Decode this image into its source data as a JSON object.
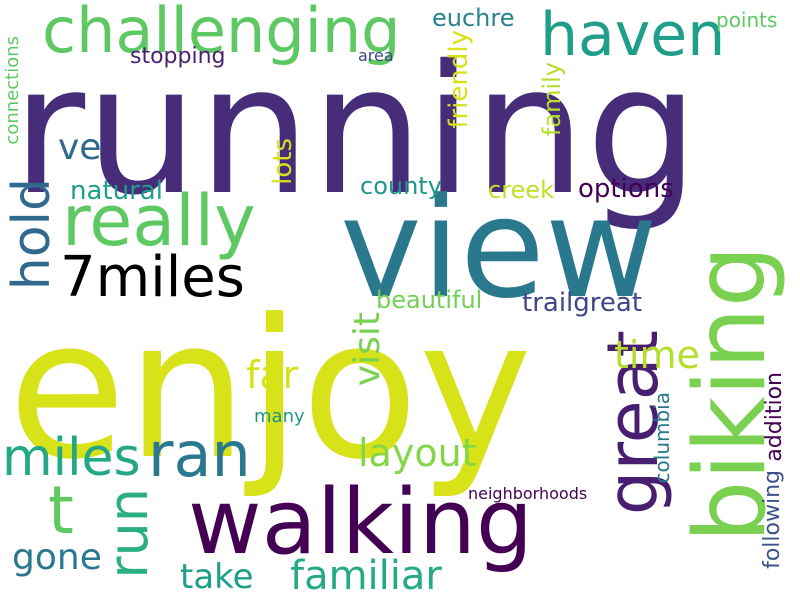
{
  "words": {
    "running": {
      "text": "running",
      "color": "#472c7a"
    },
    "view": {
      "text": "view",
      "color": "#2a788e"
    },
    "enjoy": {
      "text": "enjoy",
      "color": "#d8e219"
    },
    "walking": {
      "text": "walking",
      "color": "#440154"
    },
    "biking": {
      "text": "biking",
      "color": "#7ad151"
    },
    "challenging": {
      "text": "challenging",
      "color": "#5ec962"
    },
    "haven": {
      "text": "haven",
      "color": "#1f9e89"
    },
    "really": {
      "text": "really",
      "color": "#5ec962"
    },
    "miles7": {
      "text": "7miles",
      "color": "#3b528b"
    },
    "hold": {
      "text": "hold",
      "color": "#31688e"
    },
    "great_big": {
      "text": "great",
      "color": "#481f70"
    },
    "miles": {
      "text": "miles",
      "color": "#22a884"
    },
    "ran": {
      "text": "ran",
      "color": "#2a788e"
    },
    "t": {
      "text": "t",
      "color": "#5ec962"
    },
    "run": {
      "text": "run",
      "color": "#2ab07f"
    },
    "gone": {
      "text": "gone",
      "color": "#2a788e"
    },
    "take": {
      "text": "take",
      "color": "#1f9e89"
    },
    "familiar": {
      "text": "familiar",
      "color": "#25ab82"
    },
    "layout": {
      "text": "layout",
      "color": "#86d549"
    },
    "visit": {
      "text": "visit",
      "color": "#7ad151"
    },
    "far": {
      "text": "far",
      "color": "#d8e219"
    },
    "time": {
      "text": "time",
      "color": "#b5de2b"
    },
    "ve": {
      "text": "ve",
      "color": "#31688e"
    },
    "natural": {
      "text": "natural",
      "color": "#1f9e89"
    },
    "lots": {
      "text": "lots",
      "color": "#d8e219"
    },
    "county": {
      "text": "county",
      "color": "#1f968b"
    },
    "creek": {
      "text": "creek",
      "color": "#c2df23"
    },
    "options": {
      "text": "options",
      "color": "#440154"
    },
    "beautiful": {
      "text": "beautiful",
      "color": "#73d056"
    },
    "trailgreat": {
      "text": "trailgreat",
      "color": "#414487"
    },
    "euchre": {
      "text": "euchre",
      "color": "#26828e"
    },
    "friendly": {
      "text": "friendly",
      "color": "#d8e219"
    },
    "family": {
      "text": "family",
      "color": "#b5de2b"
    },
    "points": {
      "text": "points",
      "color": "#5ec962"
    },
    "stopping": {
      "text": "stopping",
      "color": "#482173"
    },
    "area": {
      "text": "area",
      "color": "#3e4989"
    },
    "connections": {
      "text": "connections",
      "color": "#5ec962"
    },
    "columbia": {
      "text": "columbia",
      "color": "#2a788e"
    },
    "following": {
      "text": "following",
      "color": "#3b528b"
    },
    "addition": {
      "text": "addition",
      "color": "#440154"
    },
    "many": {
      "text": "many",
      "color": "#1f968b"
    },
    "neighborhoods": {
      "text": "neighborhoods",
      "color": "#440154"
    }
  }
}
